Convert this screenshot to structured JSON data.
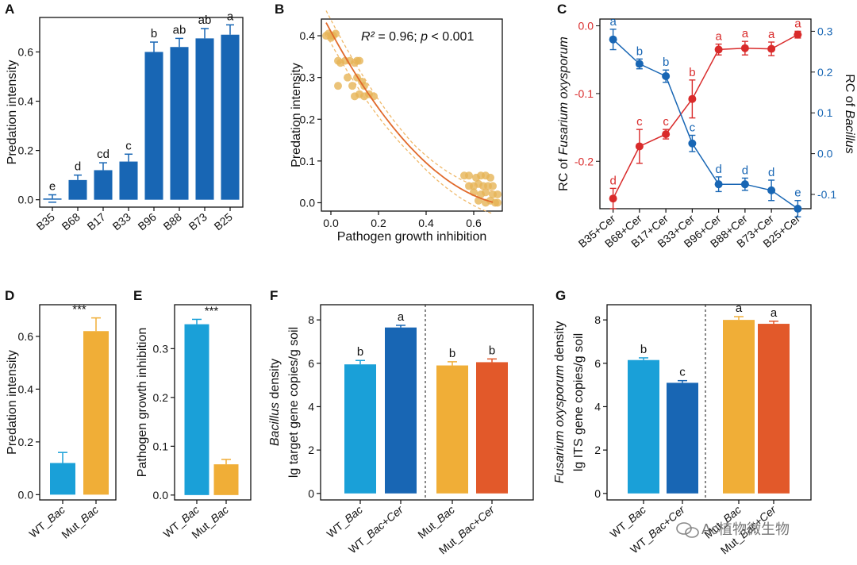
{
  "colors": {
    "blue_dark": "#1866b4",
    "blue_light": "#1aa0d8",
    "orange": "#f0ae37",
    "red_orange": "#e2592a",
    "red": "#d92b2b",
    "scatter": "#e6b456",
    "fit": "#e0692b",
    "ci": "#f0b96a",
    "axis": "#111111"
  },
  "chart_data": [
    {
      "panel": "A",
      "type": "bar",
      "ylabel": "Predation intensity",
      "yticks": [
        0.0,
        0.2,
        0.4,
        0.6
      ],
      "ylim": [
        -0.03,
        0.74
      ],
      "categories": [
        "B35",
        "B68",
        "B17",
        "B33",
        "B96",
        "B88",
        "B73",
        "B25"
      ],
      "values": [
        0.005,
        0.08,
        0.12,
        0.155,
        0.6,
        0.62,
        0.655,
        0.67
      ],
      "errors": [
        0.015,
        0.02,
        0.03,
        0.03,
        0.04,
        0.035,
        0.04,
        0.04
      ],
      "letters": [
        "e",
        "d",
        "cd",
        "c",
        "b",
        "ab",
        "ab",
        "a"
      ]
    },
    {
      "panel": "B",
      "type": "scatter",
      "xlabel": "Pathogen growth inhibition",
      "ylabel": "Predation intensity",
      "xticks": [
        0.0,
        0.2,
        0.4,
        0.6
      ],
      "yticks": [
        0.0,
        0.1,
        0.2,
        0.3,
        0.4
      ],
      "xlim": [
        -0.04,
        0.72
      ],
      "ylim": [
        -0.02,
        0.44
      ],
      "annotation": {
        "r2_label": "R²",
        "rest": " = 0.96; ",
        "p_label": "p",
        "p_rest": " < 0.001"
      },
      "fit": {
        "a": 0.41,
        "b": -1.05,
        "c": 0.66
      },
      "ci_width": 0.025,
      "points": [
        [
          -0.02,
          0.4
        ],
        [
          -0.01,
          0.405
        ],
        [
          0.0,
          0.4
        ],
        [
          0.01,
          0.4
        ],
        [
          0.02,
          0.405
        ],
        [
          0.0,
          0.395
        ],
        [
          0.03,
          0.34
        ],
        [
          0.04,
          0.335
        ],
        [
          0.06,
          0.34
        ],
        [
          0.08,
          0.34
        ],
        [
          0.1,
          0.335
        ],
        [
          0.11,
          0.34
        ],
        [
          0.12,
          0.34
        ],
        [
          0.03,
          0.28
        ],
        [
          0.07,
          0.3
        ],
        [
          0.09,
          0.28
        ],
        [
          0.11,
          0.3
        ],
        [
          0.13,
          0.29
        ],
        [
          0.14,
          0.28
        ],
        [
          0.1,
          0.255
        ],
        [
          0.12,
          0.26
        ],
        [
          0.14,
          0.255
        ],
        [
          0.16,
          0.26
        ],
        [
          0.18,
          0.255
        ],
        [
          0.56,
          0.065
        ],
        [
          0.58,
          0.065
        ],
        [
          0.61,
          0.06
        ],
        [
          0.63,
          0.065
        ],
        [
          0.65,
          0.065
        ],
        [
          0.67,
          0.06
        ],
        [
          0.58,
          0.04
        ],
        [
          0.6,
          0.04
        ],
        [
          0.62,
          0.045
        ],
        [
          0.64,
          0.04
        ],
        [
          0.66,
          0.04
        ],
        [
          0.68,
          0.04
        ],
        [
          0.6,
          0.025
        ],
        [
          0.63,
          0.02
        ],
        [
          0.65,
          0.025
        ],
        [
          0.68,
          0.02
        ],
        [
          0.7,
          0.02
        ],
        [
          0.62,
          0.005
        ],
        [
          0.65,
          0.0
        ],
        [
          0.67,
          0.005
        ],
        [
          0.69,
          0.0
        ],
        [
          0.7,
          0.0
        ]
      ]
    },
    {
      "panel": "C",
      "type": "line",
      "categories": [
        "B35+Cer",
        "B68+Cer",
        "B17+Cer",
        "B33+Cer",
        "B96+Cer",
        "B88+Cer",
        "B73+Cer",
        "B25+Cer"
      ],
      "left_axis": {
        "label_pre": "RC of ",
        "label_italic": "Fusarium oxysporum",
        "ticks": [
          -0.2,
          -0.1,
          0.0
        ],
        "tick_labels": [
          "-0.2",
          "-0.1",
          "0.0"
        ],
        "lim": [
          -0.27,
          0.01
        ]
      },
      "right_axis": {
        "label_pre": "RC of ",
        "label_italic": "Bacillus",
        "ticks": [
          -0.1,
          0.0,
          0.1,
          0.2,
          0.3
        ],
        "tick_labels": [
          "-0.1",
          "0.0",
          "0.1",
          "0.2",
          "0.3"
        ],
        "lim": [
          -0.135,
          0.33
        ]
      },
      "series": [
        {
          "name": "Fusarium",
          "axis": "left",
          "color": "red",
          "values": [
            -0.255,
            -0.178,
            -0.16,
            -0.108,
            -0.035,
            -0.033,
            -0.034,
            -0.013
          ],
          "errors": [
            0.015,
            0.025,
            0.007,
            0.028,
            0.008,
            0.01,
            0.01,
            0.005
          ],
          "letters": [
            "d",
            "c",
            "c",
            "b",
            "a",
            "a",
            "a",
            "a"
          ]
        },
        {
          "name": "Bacillus",
          "axis": "right",
          "color": "blue_dark",
          "values": [
            0.28,
            0.22,
            0.19,
            0.025,
            -0.075,
            -0.075,
            -0.09,
            -0.135
          ],
          "errors": [
            0.025,
            0.012,
            0.015,
            0.02,
            0.018,
            0.015,
            0.025,
            0.02
          ],
          "letters": [
            "a",
            "b",
            "b",
            "c",
            "d",
            "d",
            "d",
            "e"
          ]
        }
      ]
    },
    {
      "panel": "D",
      "type": "bar",
      "ylabel": "Predation intensity",
      "yticks": [
        0.0,
        0.2,
        0.4,
        0.6
      ],
      "ylim": [
        -0.02,
        0.72
      ],
      "categories": [
        "WT_Bac",
        "Mut_Bac"
      ],
      "cat_pre": [
        "WT_",
        "Mut_"
      ],
      "cat_it": [
        "Bac",
        "Bac"
      ],
      "values": [
        0.12,
        0.62
      ],
      "errors": [
        0.04,
        0.05
      ],
      "bar_colors": [
        "blue_light",
        "orange"
      ],
      "sig": "***"
    },
    {
      "panel": "E",
      "type": "bar",
      "ylabel": "Pathogen growth inhibition",
      "yticks": [
        0.0,
        0.1,
        0.2,
        0.3
      ],
      "ylim": [
        -0.01,
        0.39
      ],
      "categories": [
        "WT_Bac",
        "Mut_Bac"
      ],
      "cat_pre": [
        "WT_",
        "Mut_"
      ],
      "cat_it": [
        "Bac",
        "Bac"
      ],
      "values": [
        0.35,
        0.063
      ],
      "errors": [
        0.01,
        0.01
      ],
      "bar_colors": [
        "blue_light",
        "orange"
      ],
      "sig": "***"
    },
    {
      "panel": "F",
      "type": "bar",
      "ylabel_italic": "Bacillus",
      "ylabel_rest": " density",
      "ylabel2": "lg target gene copies/g soil",
      "yticks": [
        0,
        2,
        4,
        6,
        8
      ],
      "ylim": [
        -0.3,
        8.7
      ],
      "categories": [
        "WT_Bac",
        "WT_Bac+Cer",
        "Mut_Bac",
        "Mut_Bac+Cer"
      ],
      "cat_pre": [
        "WT_",
        "WT_",
        "Mut_",
        "Mut_"
      ],
      "cat_it": [
        "Bac",
        "Bac+Cer",
        "Bac",
        "Bac+Cer"
      ],
      "values": [
        5.95,
        7.65,
        5.9,
        6.05
      ],
      "errors": [
        0.18,
        0.1,
        0.17,
        0.15
      ],
      "letters": [
        "b",
        "a",
        "b",
        "b"
      ],
      "bar_colors": [
        "blue_light",
        "blue_dark",
        "orange",
        "red_orange"
      ]
    },
    {
      "panel": "G",
      "type": "bar",
      "ylabel_italic": "Fusarium oxysporum",
      "ylabel_rest": " density",
      "ylabel2": "lg ITS gene copies/g soil",
      "yticks": [
        0,
        2,
        4,
        6,
        8
      ],
      "ylim": [
        -0.3,
        8.7
      ],
      "categories": [
        "WT_Bac",
        "WT_Bac+Cer",
        "Mut_Bac",
        "Mut_Bac+Cer"
      ],
      "cat_pre": [
        "WT_",
        "WT_",
        "Mut_",
        "Mut_"
      ],
      "cat_it": [
        "Bac",
        "Bac+Cer",
        "Bac",
        "Bac+Cer"
      ],
      "values": [
        6.15,
        5.1,
        8.0,
        7.82
      ],
      "errors": [
        0.1,
        0.1,
        0.15,
        0.12
      ],
      "letters": [
        "b",
        "c",
        "a",
        "a"
      ],
      "bar_colors": [
        "blue_light",
        "blue_dark",
        "orange",
        "red_orange"
      ]
    }
  ],
  "watermark": "Ac植物微生物"
}
